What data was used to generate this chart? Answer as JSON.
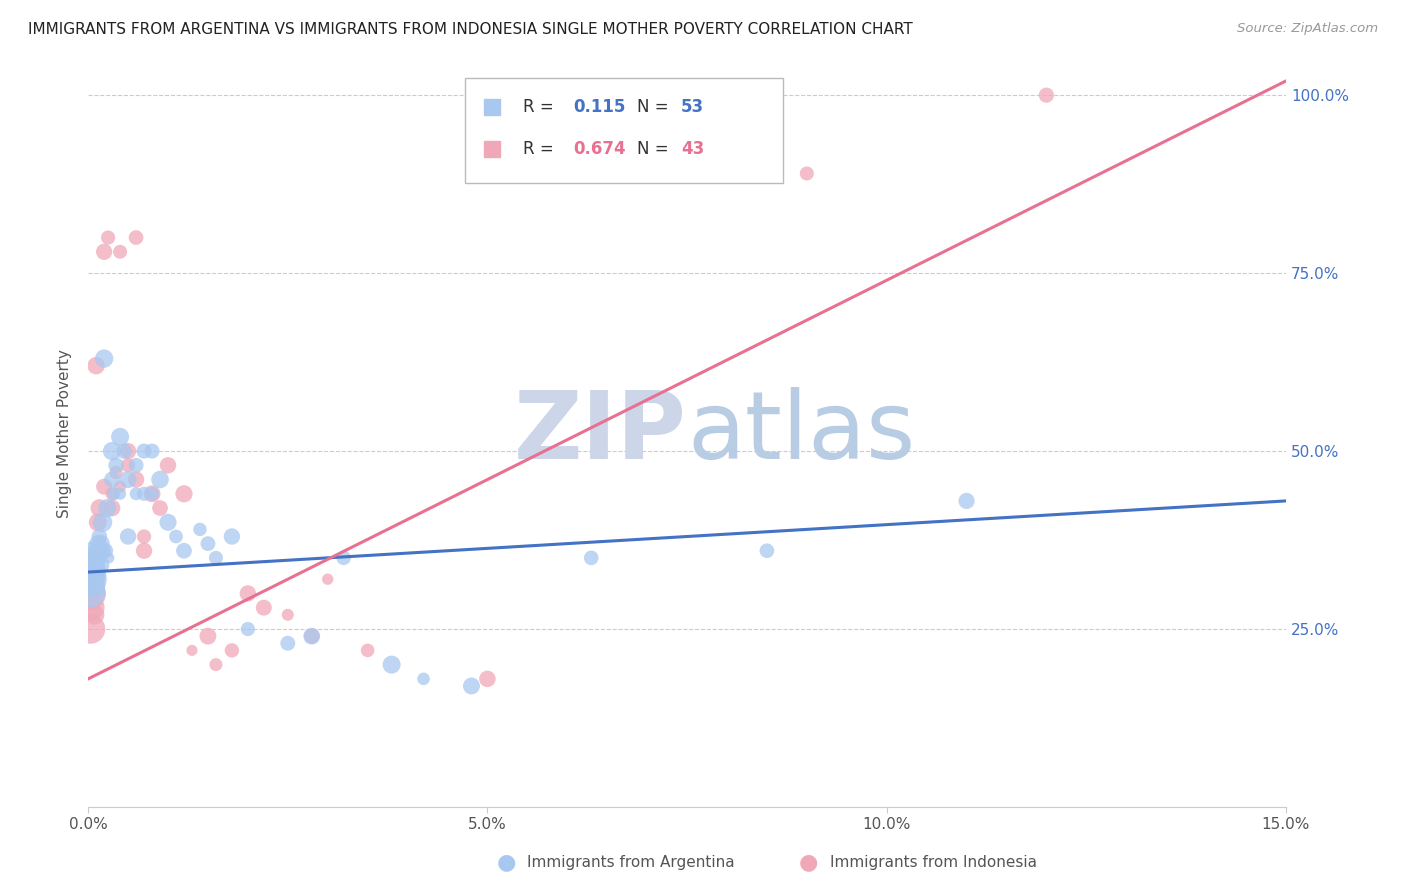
{
  "title": "IMMIGRANTS FROM ARGENTINA VS IMMIGRANTS FROM INDONESIA SINGLE MOTHER POVERTY CORRELATION CHART",
  "source": "Source: ZipAtlas.com",
  "ylabel": "Single Mother Poverty",
  "xlim": [
    0.0,
    0.15
  ],
  "ylim": [
    0.0,
    1.05
  ],
  "xticks": [
    0.0,
    0.05,
    0.1,
    0.15
  ],
  "xticklabels": [
    "0.0%",
    "5.0%",
    "10.0%",
    "15.0%"
  ],
  "yticks": [
    0.0,
    0.25,
    0.5,
    0.75,
    1.0
  ],
  "yticklabels": [
    "",
    "25.0%",
    "50.0%",
    "75.0%",
    "100.0%"
  ],
  "argentina_color": "#a8c8f0",
  "indonesia_color": "#f0a8b8",
  "argentina_line_color": "#4472c4",
  "indonesia_line_color": "#e87090",
  "watermark_zip_color": "#c8d4e8",
  "watermark_atlas_color": "#c8d8f0",
  "background_color": "#ffffff",
  "grid_color": "#cccccc",
  "title_color": "#222222",
  "axis_label_color": "#555555",
  "tick_label_color_y": "#4472c4",
  "tick_label_color_x": "#555555",
  "legend_r1_color": "#4472c4",
  "legend_r2_color": "#e87090",
  "argentina_x": [
    0.0002,
    0.0003,
    0.0004,
    0.0005,
    0.0006,
    0.0007,
    0.0008,
    0.0009,
    0.001,
    0.0012,
    0.0013,
    0.0014,
    0.0015,
    0.0016,
    0.0017,
    0.0018,
    0.002,
    0.0022,
    0.0024,
    0.0026,
    0.003,
    0.003,
    0.0032,
    0.0035,
    0.004,
    0.004,
    0.0045,
    0.005,
    0.005,
    0.006,
    0.006,
    0.007,
    0.007,
    0.008,
    0.008,
    0.009,
    0.01,
    0.011,
    0.012,
    0.014,
    0.015,
    0.016,
    0.018,
    0.02,
    0.025,
    0.028,
    0.032,
    0.038,
    0.042,
    0.048,
    0.063,
    0.085,
    0.11
  ],
  "argentina_y": [
    0.32,
    0.33,
    0.3,
    0.34,
    0.35,
    0.33,
    0.36,
    0.31,
    0.35,
    0.37,
    0.36,
    0.38,
    0.34,
    0.37,
    0.36,
    0.4,
    0.63,
    0.36,
    0.42,
    0.35,
    0.46,
    0.5,
    0.44,
    0.48,
    0.52,
    0.44,
    0.5,
    0.46,
    0.38,
    0.48,
    0.44,
    0.5,
    0.44,
    0.5,
    0.44,
    0.46,
    0.4,
    0.38,
    0.36,
    0.39,
    0.37,
    0.35,
    0.38,
    0.25,
    0.23,
    0.24,
    0.35,
    0.2,
    0.18,
    0.17,
    0.35,
    0.36,
    0.43
  ],
  "indonesia_x": [
    0.0002,
    0.0003,
    0.0004,
    0.0005,
    0.0006,
    0.0007,
    0.0008,
    0.001,
    0.001,
    0.0012,
    0.0014,
    0.0016,
    0.002,
    0.002,
    0.0025,
    0.003,
    0.003,
    0.0035,
    0.004,
    0.004,
    0.005,
    0.005,
    0.006,
    0.006,
    0.007,
    0.007,
    0.008,
    0.009,
    0.01,
    0.012,
    0.013,
    0.015,
    0.016,
    0.018,
    0.02,
    0.022,
    0.025,
    0.028,
    0.03,
    0.035,
    0.05,
    0.09,
    0.12
  ],
  "indonesia_y": [
    0.3,
    0.25,
    0.32,
    0.28,
    0.33,
    0.31,
    0.27,
    0.35,
    0.62,
    0.4,
    0.42,
    0.36,
    0.45,
    0.78,
    0.8,
    0.42,
    0.44,
    0.47,
    0.45,
    0.78,
    0.48,
    0.5,
    0.46,
    0.8,
    0.38,
    0.36,
    0.44,
    0.42,
    0.48,
    0.44,
    0.22,
    0.24,
    0.2,
    0.22,
    0.3,
    0.28,
    0.27,
    0.24,
    0.32,
    0.22,
    0.18,
    0.89,
    1.0
  ],
  "argentina_line_x": [
    0.0,
    0.15
  ],
  "argentina_line_y": [
    0.33,
    0.43
  ],
  "indonesia_line_x": [
    0.0,
    0.15
  ],
  "indonesia_line_y": [
    0.18,
    1.02
  ]
}
